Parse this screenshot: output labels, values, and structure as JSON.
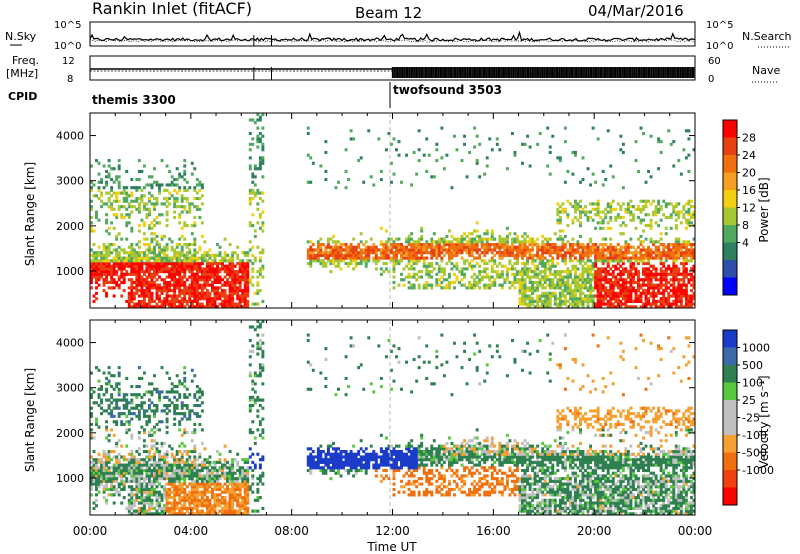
{
  "header": {
    "site": "Rankin Inlet (fitACF)",
    "beam": "Beam 12",
    "date": "04/Mar/2016"
  },
  "summary_panels": {
    "nsky_label": "N.Sky",
    "nsearch_label": "N.Search",
    "freq_label_1": "Freq.",
    "freq_label_2": "[MHz]",
    "nave_label": "Nave",
    "cpid_label": "CPID",
    "noise_ticks": [
      "10^5",
      "10^0"
    ],
    "freq_ticks": [
      "12",
      "8"
    ],
    "nave_ticks": [
      "60",
      "0"
    ],
    "cpid_segments": [
      {
        "name": "themis 3300",
        "start_hour": 0
      },
      {
        "name": "twofsound 3503",
        "start_hour": 12
      }
    ]
  },
  "colors": {
    "power_scale": [
      "#0000ff",
      "#2e4fa8",
      "#2f8060",
      "#51a860",
      "#a8c832",
      "#f0d010",
      "#f5a020",
      "#f07010",
      "#e84010",
      "#ff0000"
    ],
    "velocity_scale": [
      "#1a3cc8",
      "#3b6aa8",
      "#2e8050",
      "#58c840",
      "#c0c0c0",
      "#c0c0c0",
      "#f5a030",
      "#f07010",
      "#f04010",
      "#ff0000"
    ]
  },
  "chart_data": [
    {
      "type": "heatmap",
      "name": "power",
      "ylabel": "Slant Range [km]",
      "xlabel": "Time UT",
      "xlim": [
        0,
        24
      ],
      "ylim": [
        180,
        4500
      ],
      "xticks": [
        "00:00",
        "04:00",
        "08:00",
        "12:00",
        "16:00",
        "20:00",
        "00:00"
      ],
      "yticks": [
        1000,
        2000,
        3000,
        4000
      ],
      "colorbar_label": "Power [dB]",
      "colorbar_ticks": [
        "28",
        "24",
        "20",
        "16",
        "12",
        "8",
        "4"
      ],
      "colorbar_range": [
        0,
        30
      ]
    },
    {
      "type": "heatmap",
      "name": "velocity",
      "ylabel": "Slant Range [km]",
      "xlabel": "Time UT",
      "xlim": [
        0,
        24
      ],
      "ylim": [
        180,
        4500
      ],
      "xticks": [
        "00:00",
        "04:00",
        "08:00",
        "12:00",
        "16:00",
        "20:00",
        "00:00"
      ],
      "yticks": [
        1000,
        2000,
        3000,
        4000
      ],
      "colorbar_label": "Velocity [m s⁻¹]",
      "colorbar_ticks": [
        "1000",
        "500",
        "100",
        "25",
        "-25",
        "-100",
        "-500",
        "-1000"
      ],
      "colorbar_range": [
        -1000,
        1000
      ]
    }
  ]
}
